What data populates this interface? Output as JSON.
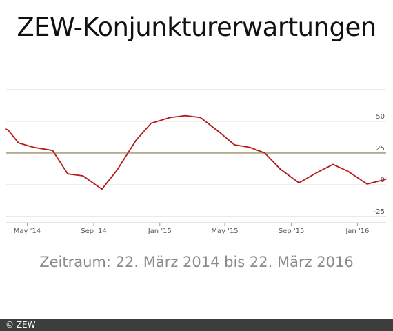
{
  "chart_data": {
    "type": "line",
    "title": "ZEW-Konjunkturerwartungen",
    "caption": "Zeitraum: 22. März 2014 bis 22. März 2016",
    "x_ticks": [
      "May '14",
      "Sep '14",
      "Jan '15",
      "May '15",
      "Sep '15",
      "Jan '16"
    ],
    "y_ticks": [
      50,
      25,
      0,
      -25
    ],
    "ylim": [
      -30,
      75
    ],
    "grid": true,
    "reference_line": 25,
    "series": [
      {
        "color": "#b5191b",
        "points": [
          [
            "2014-03-22",
            44.0
          ],
          [
            "2014-03-27",
            43.0
          ],
          [
            "2014-04-15",
            33.0
          ],
          [
            "2014-05-13",
            29.5
          ],
          [
            "2014-06-17",
            27.0
          ],
          [
            "2014-07-15",
            8.5
          ],
          [
            "2014-08-12",
            7.0
          ],
          [
            "2014-09-16",
            -3.5
          ],
          [
            "2014-10-14",
            11.5
          ],
          [
            "2014-11-18",
            35.0
          ],
          [
            "2014-12-16",
            48.5
          ],
          [
            "2015-01-20",
            53.0
          ],
          [
            "2015-02-17",
            54.5
          ],
          [
            "2015-03-17",
            53.0
          ],
          [
            "2015-04-21",
            41.5
          ],
          [
            "2015-05-19",
            31.5
          ],
          [
            "2015-06-16",
            29.5
          ],
          [
            "2015-07-14",
            25.0
          ],
          [
            "2015-08-11",
            12.5
          ],
          [
            "2015-09-15",
            1.5
          ],
          [
            "2015-10-20",
            10.0
          ],
          [
            "2015-11-17",
            16.0
          ],
          [
            "2015-12-15",
            10.5
          ],
          [
            "2016-01-19",
            0.5
          ],
          [
            "2016-02-16",
            3.5
          ],
          [
            "2016-02-23",
            4.5
          ]
        ]
      }
    ]
  },
  "footer": {
    "copyright": "© ZEW"
  }
}
